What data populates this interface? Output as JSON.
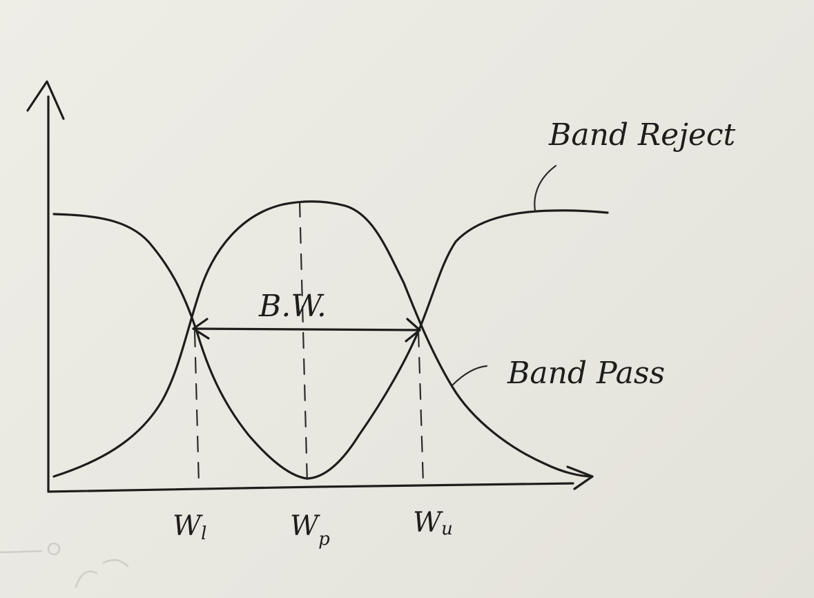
{
  "labels": {
    "band_reject": "Band Reject",
    "band_pass": "Band Pass",
    "bandwidth": "B.W.",
    "w_lower": "W",
    "w_lower_sub": "l",
    "w_peak": "W",
    "w_peak_sub": "p",
    "w_upper": "W",
    "w_upper_sub": "u"
  }
}
